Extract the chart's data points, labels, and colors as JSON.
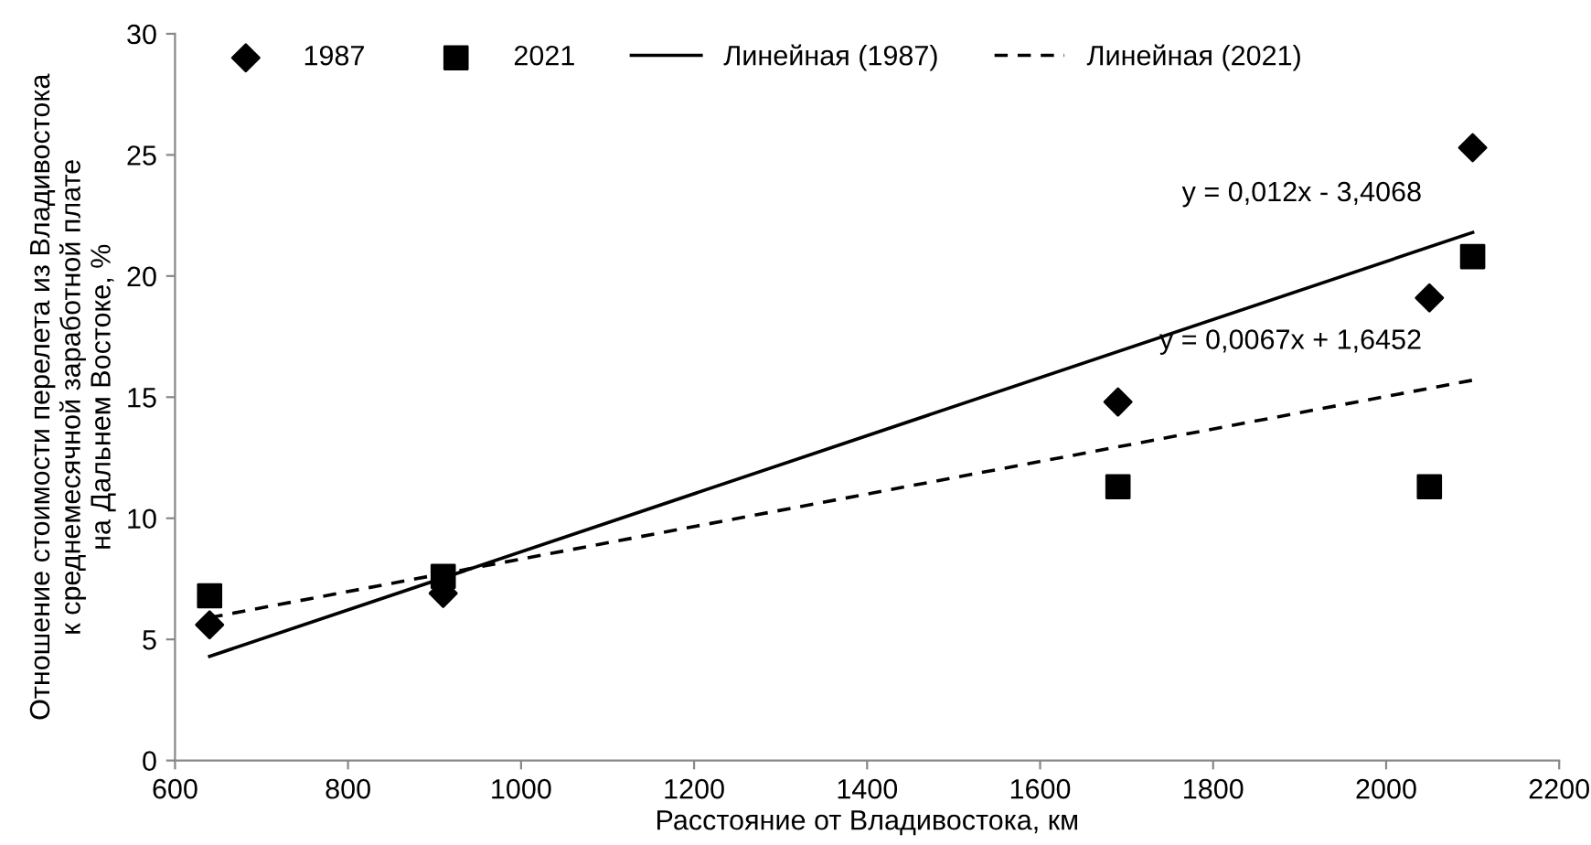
{
  "chart_data": {
    "type": "scatter",
    "xlabel": "Расстояние от Владивостока, км",
    "ylabel": "Отношение стоимости перелета из Владивостока\nк среднемесячной заработной плате\nна Дальнем Востоке, %",
    "xlim": [
      600,
      2200
    ],
    "xticks": [
      600,
      800,
      1000,
      1200,
      1400,
      1600,
      1800,
      2000,
      2200
    ],
    "ylim": [
      0,
      30
    ],
    "yticks": [
      0,
      5,
      10,
      15,
      20,
      25,
      30
    ],
    "grid": false,
    "legend": "top",
    "series": [
      {
        "name": "1987",
        "marker": "diamond",
        "color": "#000000",
        "x": [
          640,
          910,
          1690,
          2050,
          2100
        ],
        "values": [
          5.6,
          6.9,
          14.8,
          19.1,
          25.3
        ]
      },
      {
        "name": "2021",
        "marker": "square",
        "color": "#000000",
        "x": [
          640,
          910,
          1690,
          2050,
          2100
        ],
        "values": [
          6.8,
          7.6,
          11.3,
          11.3,
          20.8
        ]
      },
      {
        "name": "Линейная (1987)",
        "type": "line",
        "line_style": "solid",
        "color": "#000000",
        "x": [
          640,
          2100
        ],
        "values": [
          4.3,
          21.8
        ]
      },
      {
        "name": "Линейная (2021)",
        "type": "line",
        "line_style": "dashed",
        "color": "#000000",
        "x": [
          640,
          2100
        ],
        "values": [
          5.9,
          15.7
        ]
      }
    ],
    "annotations": [
      "y = 0,012x - 3,4068",
      "y = 0,0067x + 1,6452"
    ]
  }
}
